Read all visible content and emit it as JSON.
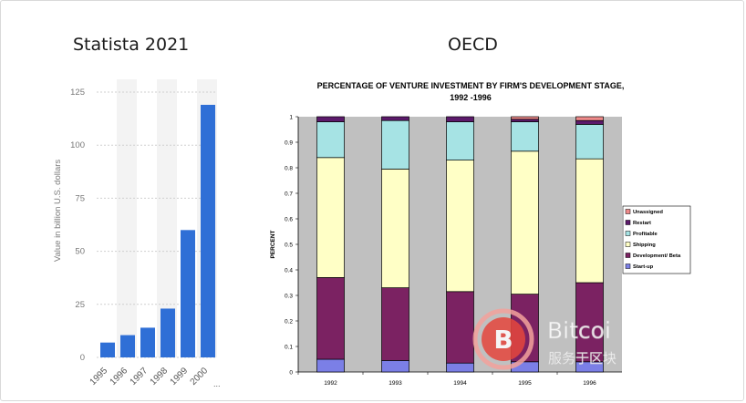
{
  "panels": {
    "left_title": "Statista 2021",
    "right_title": "OECD"
  },
  "colors": {
    "statista_bar": "#2f6fd6",
    "oecd_plot_bg": "#c0c0c0",
    "startup": "#7b7fe6",
    "dev_beta": "#7b2262",
    "shipping": "#ffffc6",
    "profitable": "#a6e3e4",
    "restart": "#5c1a6b",
    "unassigned": "#ef8a8a"
  },
  "chart_data": [
    {
      "type": "bar",
      "title": "",
      "categories": [
        "1995",
        "1996",
        "1997",
        "1998",
        "1999",
        "2000"
      ],
      "values": [
        7,
        10.5,
        14,
        23,
        60,
        119
      ],
      "xlabel": "",
      "ylabel": "Value in billion U.S. dollars",
      "ylim": [
        0,
        125
      ],
      "yticks": [
        "0",
        "25",
        "50",
        "75",
        "100",
        "125"
      ],
      "grid": true,
      "trailing_label": "..."
    },
    {
      "type": "bar",
      "stacked": true,
      "title": "PERCENTAGE OF VENTURE INVESTMENT BY FIRM'S DEVELOPMENT STAGE,",
      "subtitle": "1992 -1996",
      "ylabel": "PERCENT",
      "ylim": [
        0,
        1
      ],
      "yticks": [
        "0",
        "0.1",
        "0.2",
        "0.3",
        "0.4",
        "0.5",
        "0.6",
        "0.7",
        "0.8",
        "0.9",
        "1"
      ],
      "categories": [
        "1992",
        "1993",
        "1994",
        "1995",
        "1996"
      ],
      "legend_position": "right",
      "legend": [
        "Unassigned",
        "Restart",
        "Profitable",
        "Shipping",
        "Development/ Beta",
        "Start-up"
      ],
      "series": [
        {
          "name": "Start-up",
          "values": [
            0.05,
            0.045,
            0.035,
            0.04,
            0.04
          ]
        },
        {
          "name": "Development/ Beta",
          "values": [
            0.32,
            0.285,
            0.28,
            0.265,
            0.31
          ]
        },
        {
          "name": "Shipping",
          "values": [
            0.47,
            0.465,
            0.515,
            0.56,
            0.485
          ]
        },
        {
          "name": "Profitable",
          "values": [
            0.14,
            0.19,
            0.15,
            0.115,
            0.135
          ]
        },
        {
          "name": "Restart",
          "values": [
            0.02,
            0.015,
            0.02,
            0.01,
            0.015
          ]
        },
        {
          "name": "Unassigned",
          "values": [
            0.0,
            0.0,
            0.0,
            0.01,
            0.015
          ]
        }
      ]
    }
  ],
  "watermark": {
    "brand": "Bitcoi",
    "subtitle": "服务于区块",
    "logo_letter": "B",
    "logo_color": "#e5473d"
  }
}
